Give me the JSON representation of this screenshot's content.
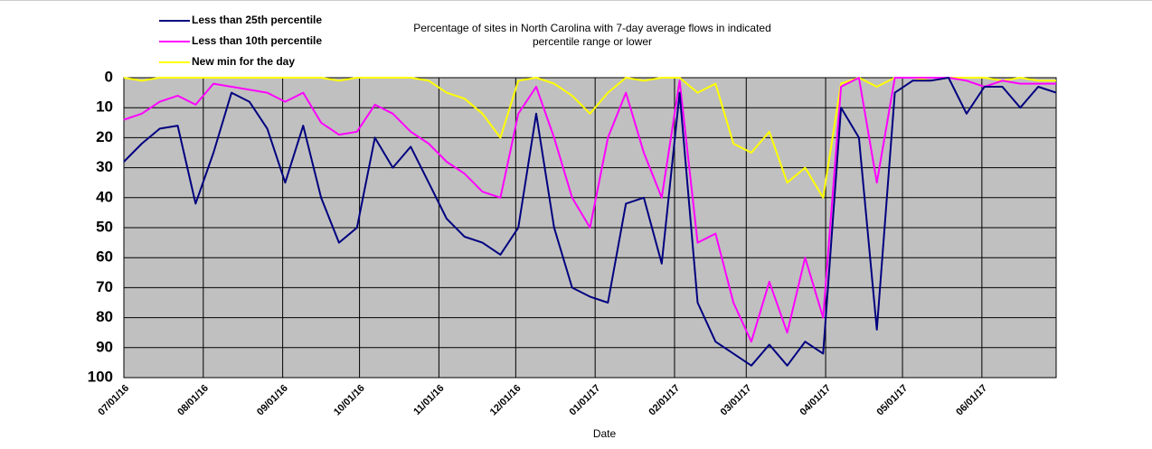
{
  "chart_data": {
    "type": "line",
    "title": "Percentage of sites in North Carolina  with 7-day average  flows in indicated percentile range or lower",
    "x_label": "Date",
    "x": [
      "2016-07-01",
      "2016-07-08",
      "2016-07-15",
      "2016-07-22",
      "2016-07-29",
      "2016-08-05",
      "2016-08-12",
      "2016-08-19",
      "2016-08-26",
      "2016-09-02",
      "2016-09-09",
      "2016-09-16",
      "2016-09-23",
      "2016-09-30",
      "2016-10-07",
      "2016-10-14",
      "2016-10-21",
      "2016-10-28",
      "2016-11-04",
      "2016-11-11",
      "2016-11-18",
      "2016-11-25",
      "2016-12-02",
      "2016-12-09",
      "2016-12-16",
      "2016-12-23",
      "2016-12-30",
      "2017-01-06",
      "2017-01-13",
      "2017-01-20",
      "2017-01-27",
      "2017-02-03",
      "2017-02-10",
      "2017-02-17",
      "2017-02-24",
      "2017-03-03",
      "2017-03-10",
      "2017-03-17",
      "2017-03-24",
      "2017-03-31",
      "2017-04-07",
      "2017-04-14",
      "2017-04-21",
      "2017-04-28",
      "2017-05-05",
      "2017-05-12",
      "2017-05-19",
      "2017-05-26",
      "2017-06-02",
      "2017-06-09",
      "2017-06-16",
      "2017-06-23",
      "2017-06-30"
    ],
    "series": [
      {
        "name": "Less than 25th percentile",
        "color": "#000080",
        "values": [
          28,
          22,
          17,
          16,
          42,
          25,
          5,
          8,
          17,
          35,
          16,
          40,
          55,
          50,
          20,
          30,
          23,
          35,
          47,
          53,
          55,
          59,
          50,
          12,
          50,
          70,
          73,
          75,
          42,
          40,
          62,
          5,
          75,
          88,
          92,
          96,
          89,
          96,
          88,
          92,
          10,
          20,
          84,
          5,
          1,
          1,
          0,
          12,
          3,
          3,
          10,
          3,
          5
        ]
      },
      {
        "name": "Less than 10th percentile",
        "color": "#ff00ff",
        "values": [
          14,
          12,
          8,
          6,
          9,
          2,
          3,
          4,
          5,
          8,
          5,
          15,
          19,
          18,
          9,
          12,
          18,
          22,
          28,
          32,
          38,
          40,
          12,
          3,
          20,
          40,
          50,
          20,
          5,
          25,
          40,
          1,
          55,
          52,
          75,
          88,
          68,
          85,
          60,
          80,
          3,
          0,
          35,
          0,
          0,
          0,
          0,
          1,
          3,
          1,
          2,
          2,
          2
        ]
      },
      {
        "name": "New min for the day",
        "color": "#ffff00",
        "values": [
          0,
          1,
          0,
          0,
          0,
          0,
          0,
          0,
          0,
          0,
          0,
          0,
          1,
          0,
          0,
          0,
          0,
          1,
          5,
          7,
          12,
          20,
          1,
          0,
          2,
          6,
          12,
          5,
          0,
          1,
          0,
          0,
          5,
          2,
          22,
          25,
          18,
          35,
          30,
          40,
          2,
          0,
          3,
          0,
          0,
          1,
          0,
          0,
          0,
          1,
          0,
          1,
          1
        ]
      }
    ],
    "xlim": [
      "2016-07-01",
      "2017-06-30"
    ],
    "xticks": [
      {
        "value": "2016-07-01",
        "label": "07/01/16"
      },
      {
        "value": "2016-08-01",
        "label": "08/01/16"
      },
      {
        "value": "2016-09-01",
        "label": "09/01/16"
      },
      {
        "value": "2016-10-01",
        "label": "10/01/16"
      },
      {
        "value": "2016-11-01",
        "label": "11/01/16"
      },
      {
        "value": "2016-12-01",
        "label": "12/01/16"
      },
      {
        "value": "2017-01-01",
        "label": "01/01/17"
      },
      {
        "value": "2017-02-01",
        "label": "02/01/17"
      },
      {
        "value": "2017-03-01",
        "label": "03/01/17"
      },
      {
        "value": "2017-04-01",
        "label": "04/01/17"
      },
      {
        "value": "2017-05-01",
        "label": "05/01/17"
      },
      {
        "value": "2017-06-01",
        "label": "06/01/17"
      }
    ],
    "ylim": [
      0,
      100
    ],
    "yticks": [
      0,
      10,
      20,
      30,
      40,
      50,
      60,
      70,
      80,
      90,
      100
    ],
    "y_reversed": true,
    "grid": true,
    "plot_background": "#c0c0c0"
  }
}
